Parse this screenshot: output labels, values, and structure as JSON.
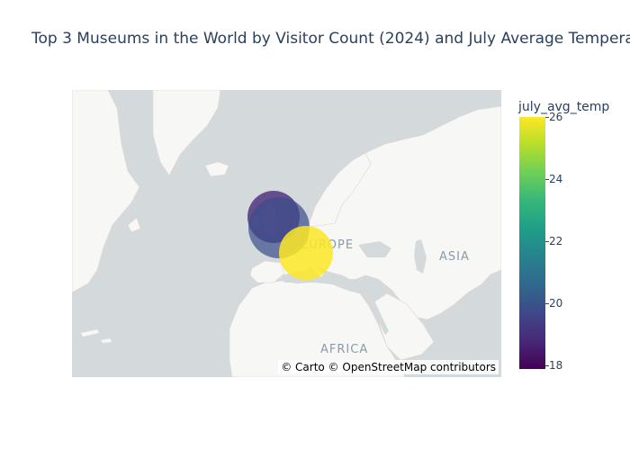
{
  "title": "Top 3 Museums in the World by Visitor Count (2024) and July Average Tempera",
  "map": {
    "labels": {
      "europe": "EUROPE",
      "asia": "ASIA",
      "africa": "AFRICA"
    },
    "attribution": "© Carto © OpenStreetMap contributors"
  },
  "colorbar": {
    "title": "july_avg_temp",
    "ticks": [
      "26",
      "24",
      "22",
      "20",
      "18"
    ],
    "range": [
      18,
      26
    ],
    "colorscale": "viridis"
  },
  "colors": {
    "land": "#f7f7f5",
    "water": "#d4dadc",
    "label": "#8c99a8",
    "text": "#2a3f5f"
  },
  "chart_data": {
    "type": "scatter_mapbox",
    "points": [
      {
        "july_avg_temp": 19,
        "lat": 48.86,
        "lon": 2.34,
        "size_rank": 2
      },
      {
        "july_avg_temp": 20,
        "lat": 51.5,
        "lon": -0.12,
        "size_rank": 3
      },
      {
        "july_avg_temp": 26,
        "lat": 41.9,
        "lon": 12.45,
        "size_rank": 1
      }
    ]
  }
}
